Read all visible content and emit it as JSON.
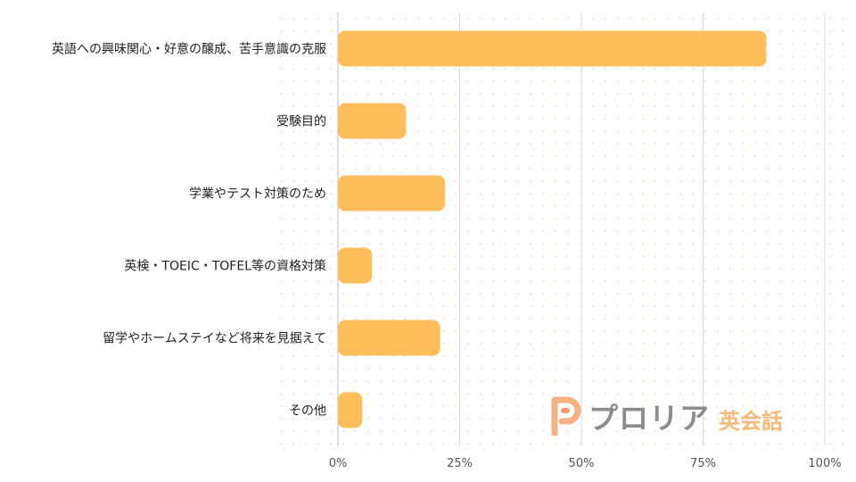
{
  "chart_data": {
    "type": "bar",
    "orientation": "horizontal",
    "title": "",
    "xlabel": "",
    "ylabel": "",
    "categories": [
      "英語への興味関心・好意の醸成、苦手意識の克服",
      "受験目的",
      "学業やテスト対策のため",
      "英検・TOEIC・TOFEL等の資格対策",
      "留学やホームステイなど将来を見据えて",
      "その他"
    ],
    "values": [
      88,
      14,
      22,
      7,
      21,
      5
    ],
    "xlim": [
      0,
      100
    ],
    "x_ticks": [
      0,
      25,
      50,
      75,
      100
    ],
    "x_tick_labels": [
      "0%",
      "25%",
      "50%",
      "75%",
      "100%"
    ],
    "grid": true,
    "legend": "none",
    "bar_color": "#ffbe5c"
  },
  "logo": {
    "icon": "logo-p-icon",
    "name": "プロリア",
    "sub": "英会話"
  }
}
